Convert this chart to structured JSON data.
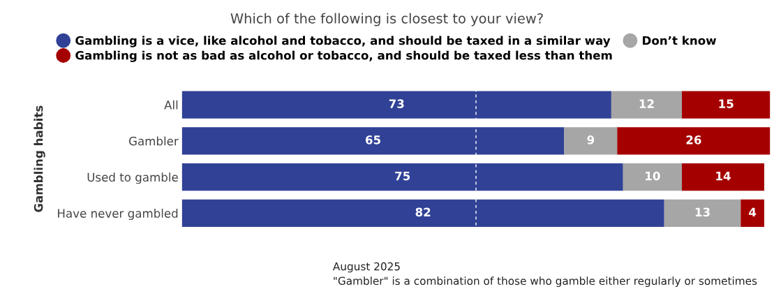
{
  "chart_data": {
    "type": "bar",
    "orientation": "horizontal",
    "stacked": true,
    "title": "Which of the following is closest to your view?",
    "ylabel": "Gambling habits",
    "categories": [
      "All",
      "Gambler",
      "Used to gamble",
      "Have never gambled"
    ],
    "series": [
      {
        "name": "Gambling is a vice, like alcohol and tobacco, and should be taxed in a similar way",
        "color": "#304196",
        "values": [
          73,
          65,
          75,
          82
        ]
      },
      {
        "name": "Don’t know",
        "color": "#a6a6a6",
        "values": [
          12,
          9,
          10,
          13
        ]
      },
      {
        "name": "Gambling is not as bad as alcohol or tobacco, and should be taxed less than them",
        "color": "#a50000",
        "values": [
          15,
          26,
          14,
          4
        ]
      }
    ],
    "xlim": [
      0,
      100
    ],
    "tick_labels": "y",
    "data_labels": true,
    "legend": "top",
    "grid": false,
    "ref_lines": [
      {
        "axis": "x",
        "value": 50,
        "color": "#ffffff",
        "line_style": "dashed"
      }
    ],
    "annotations": [
      "August 2025",
      "\"Gambler\" is a combination of those who gamble either regularly or sometimes"
    ]
  }
}
